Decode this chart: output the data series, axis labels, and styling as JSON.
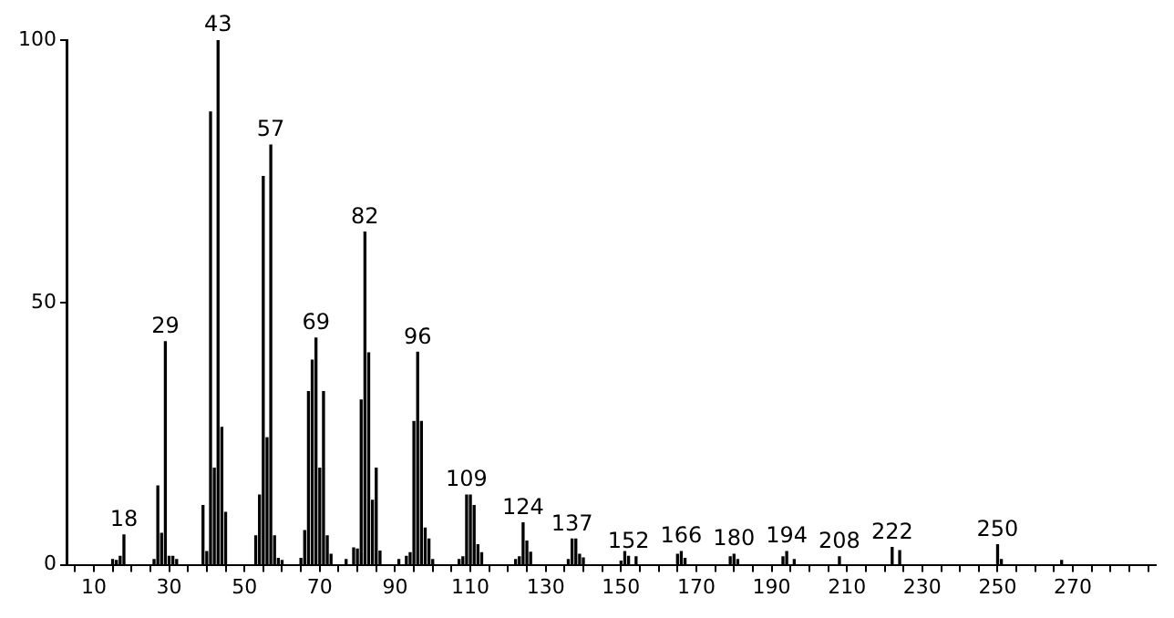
{
  "chart_data": {
    "type": "bar",
    "x": [
      15,
      16,
      17,
      18,
      26,
      27,
      28,
      29,
      30,
      31,
      32,
      39,
      40,
      41,
      42,
      43,
      44,
      45,
      53,
      54,
      55,
      56,
      57,
      58,
      59,
      60,
      65,
      66,
      67,
      68,
      69,
      70,
      71,
      72,
      73,
      77,
      79,
      80,
      81,
      82,
      83,
      84,
      85,
      86,
      91,
      93,
      94,
      95,
      96,
      97,
      98,
      99,
      100,
      107,
      108,
      109,
      110,
      111,
      112,
      113,
      122,
      123,
      124,
      125,
      126,
      136,
      137,
      138,
      139,
      140,
      150,
      151,
      152,
      154,
      165,
      166,
      167,
      179,
      180,
      181,
      193,
      194,
      196,
      208,
      222,
      224,
      250,
      251,
      267
    ],
    "series": [
      {
        "color": "#000000",
        "values": [
          1,
          0.8,
          1.6,
          5.7,
          1,
          15,
          6,
          42.5,
          1.6,
          1.6,
          1,
          11.3,
          2.5,
          86.3,
          18.4,
          100,
          26.2,
          10,
          5.5,
          13.3,
          74,
          24.2,
          80,
          5.5,
          1.2,
          0.8,
          1.2,
          6.5,
          33,
          39,
          43.2,
          18.4,
          33,
          5.5,
          2,
          1,
          3.2,
          3,
          31.4,
          63.4,
          40.4,
          12.3,
          18.4,
          2.6,
          1,
          1.6,
          2.3,
          27.3,
          40.5,
          27.3,
          7,
          4.9,
          1,
          1,
          1.5,
          13.3,
          13.3,
          11.3,
          3.8,
          2.3,
          1,
          1.5,
          8,
          4.5,
          2.4,
          1,
          4.9,
          4.9,
          2,
          1.3,
          0.7,
          2.5,
          1.6,
          1.5,
          2,
          2.5,
          1.2,
          1.5,
          2,
          1,
          1.5,
          2.5,
          1,
          1.5,
          3.3,
          2.7,
          3.8,
          1,
          0.8
        ]
      }
    ],
    "xlim": [
      3,
      292
    ],
    "xticks": [
      {
        "value": 5,
        "label": null
      },
      10,
      {
        "value": 15,
        "label": null
      },
      {
        "value": 20,
        "label": null
      },
      {
        "value": 25,
        "label": null
      },
      30,
      {
        "value": 35,
        "label": null
      },
      {
        "value": 40,
        "label": null
      },
      {
        "value": 45,
        "label": null
      },
      50,
      {
        "value": 55,
        "label": null
      },
      {
        "value": 60,
        "label": null
      },
      {
        "value": 65,
        "label": null
      },
      70,
      {
        "value": 75,
        "label": null
      },
      {
        "value": 80,
        "label": null
      },
      {
        "value": 85,
        "label": null
      },
      90,
      {
        "value": 95,
        "label": null
      },
      {
        "value": 100,
        "label": null
      },
      {
        "value": 105,
        "label": null
      },
      110,
      {
        "value": 115,
        "label": null
      },
      {
        "value": 120,
        "label": null
      },
      {
        "value": 125,
        "label": null
      },
      130,
      {
        "value": 135,
        "label": null
      },
      {
        "value": 140,
        "label": null
      },
      {
        "value": 145,
        "label": null
      },
      150,
      {
        "value": 155,
        "label": null
      },
      {
        "value": 160,
        "label": null
      },
      {
        "value": 165,
        "label": null
      },
      170,
      {
        "value": 175,
        "label": null
      },
      {
        "value": 180,
        "label": null
      },
      {
        "value": 185,
        "label": null
      },
      190,
      {
        "value": 195,
        "label": null
      },
      {
        "value": 200,
        "label": null
      },
      {
        "value": 205,
        "label": null
      },
      210,
      {
        "value": 215,
        "label": null
      },
      {
        "value": 220,
        "label": null
      },
      {
        "value": 225,
        "label": null
      },
      230,
      {
        "value": 235,
        "label": null
      },
      {
        "value": 240,
        "label": null
      },
      {
        "value": 245,
        "label": null
      },
      250,
      {
        "value": 255,
        "label": null
      },
      {
        "value": 260,
        "label": null
      },
      {
        "value": 265,
        "label": null
      },
      270,
      {
        "value": 275,
        "label": null
      },
      {
        "value": 280,
        "label": null
      },
      {
        "value": 285,
        "label": null
      },
      {
        "value": 290,
        "label": null
      }
    ],
    "ylim": [
      0,
      100
    ],
    "yticks": [
      0,
      50,
      100
    ],
    "annotations": [
      {
        "text": "18",
        "x": 18,
        "y": 5.7
      },
      {
        "text": "29",
        "x": 29,
        "y": 42.5
      },
      {
        "text": "43",
        "x": 43,
        "y": 100
      },
      {
        "text": "57",
        "x": 57,
        "y": 80
      },
      {
        "text": "69",
        "x": 69,
        "y": 43.2
      },
      {
        "text": "82",
        "x": 82,
        "y": 63.4
      },
      {
        "text": "96",
        "x": 96,
        "y": 40.5
      },
      {
        "text": "109",
        "x": 109,
        "y": 13.3
      },
      {
        "text": "124",
        "x": 124,
        "y": 8
      },
      {
        "text": "137",
        "x": 137,
        "y": 4.9
      },
      {
        "text": "152",
        "x": 152,
        "y": 1.6
      },
      {
        "text": "166",
        "x": 166,
        "y": 2.5
      },
      {
        "text": "180",
        "x": 180,
        "y": 2
      },
      {
        "text": "194",
        "x": 194,
        "y": 2.5
      },
      {
        "text": "208",
        "x": 208,
        "y": 1.5
      },
      {
        "text": "222",
        "x": 222,
        "y": 3.3
      },
      {
        "text": "250",
        "x": 250,
        "y": 3.8
      }
    ],
    "grid": false,
    "legend": false
  }
}
